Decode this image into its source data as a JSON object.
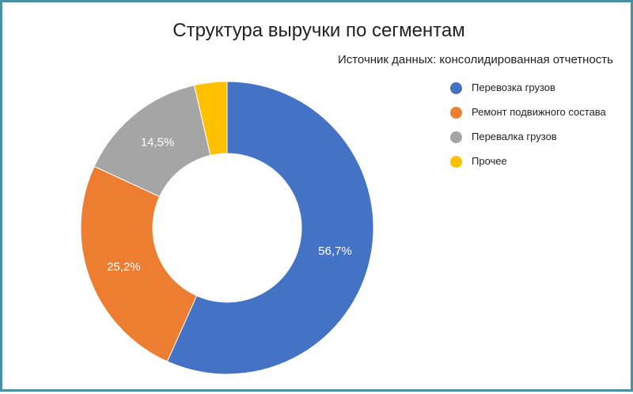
{
  "chart_data": {
    "type": "pie",
    "title": "Структура выручки по сегментам",
    "subtitle": "Источник данных: консолидированная отчетность",
    "legend_position": "right",
    "slices": [
      {
        "label": "Перевозка грузов",
        "value": 56.7,
        "value_label": "56,7%",
        "color": "#4472c4",
        "label_color": "#ffffff"
      },
      {
        "label": "Ремонт подвижного состава",
        "value": 25.2,
        "value_label": "25,2%",
        "color": "#ed7d31",
        "label_color": "#ffffff"
      },
      {
        "label": "Перевалка грузов",
        "value": 14.5,
        "value_label": "14,5%",
        "color": "#a5a5a5",
        "label_color": "#ffffff"
      },
      {
        "label": "Прочее",
        "value": 3.6,
        "value_label": "",
        "color": "#ffc000",
        "label_color": "#ffffff"
      }
    ]
  }
}
